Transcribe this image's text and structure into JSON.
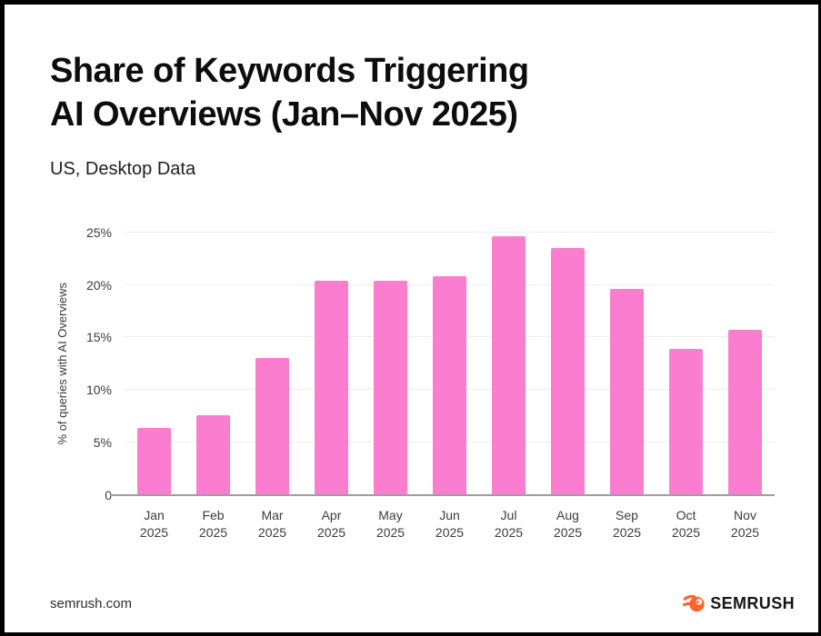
{
  "header": {
    "title_line1": "Share of Keywords Triggering",
    "title_line2": "AI Overviews (Jan–Nov 2025)",
    "subtitle": "US, Desktop Data"
  },
  "chart_data": {
    "type": "bar",
    "title": "Share of Keywords Triggering AI Overviews (Jan–Nov 2025)",
    "subtitle": "US, Desktop Data",
    "categories": [
      "Jan 2025",
      "Feb 2025",
      "Mar 2025",
      "Apr 2025",
      "May 2025",
      "Jun 2025",
      "Jul 2025",
      "Aug 2025",
      "Sep 2025",
      "Oct 2025",
      "Nov 2025"
    ],
    "values": [
      6.4,
      7.6,
      13.0,
      20.4,
      20.4,
      20.8,
      24.6,
      23.5,
      19.6,
      13.9,
      15.7
    ],
    "xlabel": "",
    "ylabel": "% of queries with AI Overviews",
    "ylim": [
      0,
      25
    ],
    "yticks": [
      {
        "value": 25,
        "label": "25%"
      },
      {
        "value": 20,
        "label": "20%"
      },
      {
        "value": 15,
        "label": "15%"
      },
      {
        "value": 10,
        "label": "10%"
      },
      {
        "value": 5,
        "label": "5%"
      },
      {
        "value": 0,
        "label": "0"
      }
    ],
    "grid": true,
    "legend": null,
    "bar_color": "#FA7DD0",
    "gridline_color": "#ededed",
    "baseline_color": "#9e9e9e"
  },
  "footer": {
    "source": "semrush.com",
    "brand": "SEMRUSH",
    "brand_color": "#FF642D"
  }
}
